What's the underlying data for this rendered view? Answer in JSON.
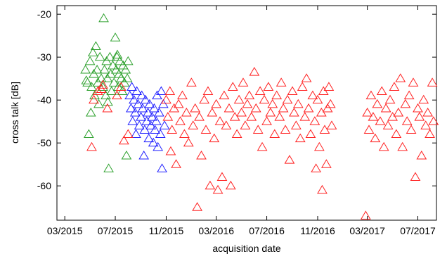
{
  "chart_data": {
    "type": "scatter",
    "title": "",
    "xlabel": "acquisition date",
    "ylabel": "cross talk [dB]",
    "marker": "open-triangle",
    "grid": false,
    "legend": "none",
    "xlim": [
      "2015-02-10",
      "2017-08-15"
    ],
    "ylim": [
      -68,
      -18
    ],
    "x_ticks": [
      "03/2015",
      "07/2015",
      "11/2015",
      "03/2016",
      "07/2016",
      "11/2016",
      "03/2017",
      "07/2017"
    ],
    "y_ticks": [
      -60,
      -50,
      -40,
      -30,
      -20
    ],
    "series": [
      {
        "color": "#2ca02c",
        "points": [
          [
            "2015-04-20",
            -33
          ],
          [
            "2015-04-25",
            -36
          ],
          [
            "2015-04-28",
            -48
          ],
          [
            "2015-05-01",
            -31
          ],
          [
            "2015-05-05",
            -37
          ],
          [
            "2015-05-08",
            -29
          ],
          [
            "2015-05-10",
            -34
          ],
          [
            "2015-05-12",
            -39
          ],
          [
            "2015-05-15",
            -27.5
          ],
          [
            "2015-05-18",
            -33
          ],
          [
            "2015-05-20",
            -36
          ],
          [
            "2015-05-22",
            -41
          ],
          [
            "2015-05-25",
            -30
          ],
          [
            "2015-05-28",
            -35
          ],
          [
            "2015-06-01",
            -37
          ],
          [
            "2015-06-03",
            -21
          ],
          [
            "2015-06-05",
            -33
          ],
          [
            "2015-06-08",
            -39
          ],
          [
            "2015-06-10",
            -31
          ],
          [
            "2015-06-12",
            -35
          ],
          [
            "2015-06-15",
            -56
          ],
          [
            "2015-06-18",
            -30
          ],
          [
            "2015-06-20",
            -34
          ],
          [
            "2015-06-22",
            -38
          ],
          [
            "2015-06-25",
            -32
          ],
          [
            "2015-06-28",
            -36
          ],
          [
            "2015-07-01",
            -25.5
          ],
          [
            "2015-07-03",
            -33
          ],
          [
            "2015-07-05",
            -30
          ],
          [
            "2015-07-08",
            -37
          ],
          [
            "2015-07-10",
            -34
          ],
          [
            "2015-07-12",
            -31
          ],
          [
            "2015-07-15",
            -35
          ],
          [
            "2015-07-18",
            -38
          ],
          [
            "2015-07-20",
            -32
          ],
          [
            "2015-07-23",
            -36
          ],
          [
            "2015-07-26",
            -33
          ],
          [
            "2015-07-28",
            -53
          ],
          [
            "2015-07-30",
            -35
          ],
          [
            "2015-08-01",
            -31
          ],
          [
            "2015-05-03",
            -43
          ],
          [
            "2015-06-13",
            -40.5
          ],
          [
            "2015-04-22",
            -35.5
          ],
          [
            "2015-07-06",
            -29.5
          ]
        ]
      },
      {
        "color": "#1f1fff",
        "points": [
          [
            "2015-08-05",
            -39
          ],
          [
            "2015-08-08",
            -42
          ],
          [
            "2015-08-10",
            -37
          ],
          [
            "2015-08-12",
            -45
          ],
          [
            "2015-08-15",
            -40
          ],
          [
            "2015-08-18",
            -43
          ],
          [
            "2015-08-20",
            -48
          ],
          [
            "2015-08-22",
            -38
          ],
          [
            "2015-08-25",
            -41
          ],
          [
            "2015-08-28",
            -46
          ],
          [
            "2015-09-01",
            -44
          ],
          [
            "2015-09-03",
            -39
          ],
          [
            "2015-09-05",
            -42
          ],
          [
            "2015-09-08",
            -53
          ],
          [
            "2015-09-10",
            -47
          ],
          [
            "2015-09-12",
            -40
          ],
          [
            "2015-09-15",
            -45
          ],
          [
            "2015-09-18",
            -43
          ],
          [
            "2015-09-20",
            -49
          ],
          [
            "2015-09-22",
            -41
          ],
          [
            "2015-09-25",
            -46
          ],
          [
            "2015-09-28",
            -44
          ],
          [
            "2015-10-01",
            -50
          ],
          [
            "2015-10-03",
            -42
          ],
          [
            "2015-10-05",
            -47
          ],
          [
            "2015-10-08",
            -45
          ],
          [
            "2015-10-10",
            -39
          ],
          [
            "2015-10-12",
            -51
          ],
          [
            "2015-10-15",
            -43
          ],
          [
            "2015-10-18",
            -48
          ],
          [
            "2015-10-20",
            -38
          ],
          [
            "2015-10-22",
            -56
          ],
          [
            "2015-10-25",
            -41
          ],
          [
            "2015-10-28",
            -46
          ]
        ]
      },
      {
        "color": "#ff2020",
        "points": [
          [
            "2015-05-05",
            -51
          ],
          [
            "2015-05-10",
            -40
          ],
          [
            "2015-05-20",
            -38
          ],
          [
            "2015-06-01",
            -36.5
          ],
          [
            "2015-06-12",
            -42
          ],
          [
            "2015-07-05",
            -39
          ],
          [
            "2015-07-15",
            -37
          ],
          [
            "2015-07-22",
            -49.5
          ],
          [
            "2015-08-01",
            -48
          ],
          [
            "2015-05-28",
            -37.5
          ],
          [
            "2015-11-01",
            -40
          ],
          [
            "2015-11-05",
            -44
          ],
          [
            "2015-11-10",
            -38
          ],
          [
            "2015-11-12",
            -52
          ],
          [
            "2015-11-15",
            -47
          ],
          [
            "2015-11-20",
            -42
          ],
          [
            "2015-11-25",
            -55
          ],
          [
            "2015-12-01",
            -41
          ],
          [
            "2015-12-05",
            -45
          ],
          [
            "2015-12-10",
            -39
          ],
          [
            "2015-12-15",
            -48
          ],
          [
            "2015-12-20",
            -43
          ],
          [
            "2015-12-25",
            -50
          ],
          [
            "2016-01-01",
            -36
          ],
          [
            "2016-01-05",
            -46
          ],
          [
            "2016-01-10",
            -42
          ],
          [
            "2016-01-15",
            -65
          ],
          [
            "2016-01-20",
            -44
          ],
          [
            "2016-01-25",
            -53
          ],
          [
            "2016-02-01",
            -40
          ],
          [
            "2016-02-05",
            -47
          ],
          [
            "2016-02-10",
            -38
          ],
          [
            "2016-02-15",
            -60
          ],
          [
            "2016-02-20",
            -43
          ],
          [
            "2016-02-25",
            -49
          ],
          [
            "2016-03-01",
            -41
          ],
          [
            "2016-03-05",
            -61
          ],
          [
            "2016-03-10",
            -45
          ],
          [
            "2016-03-15",
            -58
          ],
          [
            "2016-03-20",
            -39
          ],
          [
            "2016-03-25",
            -46
          ],
          [
            "2016-04-01",
            -42
          ],
          [
            "2016-04-05",
            -60
          ],
          [
            "2016-04-10",
            -37
          ],
          [
            "2016-04-15",
            -44
          ],
          [
            "2016-04-20",
            -48
          ],
          [
            "2016-04-25",
            -40
          ],
          [
            "2016-05-01",
            -43
          ],
          [
            "2016-05-05",
            -36
          ],
          [
            "2016-05-10",
            -46
          ],
          [
            "2016-05-15",
            -41
          ],
          [
            "2016-05-20",
            -39
          ],
          [
            "2016-05-25",
            -44
          ],
          [
            "2016-06-01",
            -33.5
          ],
          [
            "2016-06-05",
            -42
          ],
          [
            "2016-06-10",
            -47
          ],
          [
            "2016-06-15",
            -38
          ],
          [
            "2016-06-20",
            -51
          ],
          [
            "2016-06-25",
            -40
          ],
          [
            "2016-07-01",
            -45
          ],
          [
            "2016-07-05",
            -37
          ],
          [
            "2016-07-10",
            -43
          ],
          [
            "2016-07-15",
            -41
          ],
          [
            "2016-07-20",
            -48
          ],
          [
            "2016-07-25",
            -39
          ],
          [
            "2016-08-01",
            -44
          ],
          [
            "2016-08-05",
            -36
          ],
          [
            "2016-08-10",
            -42
          ],
          [
            "2016-08-15",
            -47
          ],
          [
            "2016-08-20",
            -40
          ],
          [
            "2016-08-25",
            -54
          ],
          [
            "2016-09-01",
            -38
          ],
          [
            "2016-09-05",
            -43
          ],
          [
            "2016-09-10",
            -46
          ],
          [
            "2016-09-15",
            -41
          ],
          [
            "2016-09-20",
            -49
          ],
          [
            "2016-09-25",
            -37
          ],
          [
            "2016-10-01",
            -44
          ],
          [
            "2016-10-05",
            -35
          ],
          [
            "2016-10-10",
            -42
          ],
          [
            "2016-10-15",
            -48
          ],
          [
            "2016-10-20",
            -39
          ],
          [
            "2016-10-25",
            -45
          ],
          [
            "2016-10-28",
            -56
          ],
          [
            "2016-11-01",
            -40
          ],
          [
            "2016-11-05",
            -51
          ],
          [
            "2016-11-10",
            -43
          ],
          [
            "2016-11-12",
            -61
          ],
          [
            "2016-11-15",
            -38
          ],
          [
            "2016-11-18",
            -47
          ],
          [
            "2016-11-22",
            -55
          ],
          [
            "2016-11-25",
            -42
          ],
          [
            "2016-11-28",
            -37
          ],
          [
            "2016-12-02",
            -41
          ],
          [
            "2016-12-05",
            -46
          ],
          [
            "2017-02-25",
            -67
          ],
          [
            "2017-03-01",
            -43
          ],
          [
            "2017-03-05",
            -47
          ],
          [
            "2017-03-10",
            -39
          ],
          [
            "2017-03-15",
            -44
          ],
          [
            "2017-03-20",
            -49
          ],
          [
            "2017-03-25",
            -41
          ],
          [
            "2017-04-01",
            -45
          ],
          [
            "2017-04-05",
            -38
          ],
          [
            "2017-04-10",
            -51
          ],
          [
            "2017-04-15",
            -42
          ],
          [
            "2017-04-20",
            -46
          ],
          [
            "2017-04-25",
            -40
          ],
          [
            "2017-05-01",
            -44
          ],
          [
            "2017-05-05",
            -37
          ],
          [
            "2017-05-10",
            -48
          ],
          [
            "2017-05-15",
            -43
          ],
          [
            "2017-05-20",
            -35
          ],
          [
            "2017-05-25",
            -51
          ],
          [
            "2017-06-01",
            -41
          ],
          [
            "2017-06-05",
            -45
          ],
          [
            "2017-06-10",
            -39
          ],
          [
            "2017-06-15",
            -47
          ],
          [
            "2017-06-20",
            -36
          ],
          [
            "2017-06-25",
            -58
          ],
          [
            "2017-07-01",
            -42
          ],
          [
            "2017-07-05",
            -44
          ],
          [
            "2017-07-10",
            -53
          ],
          [
            "2017-07-15",
            -40
          ],
          [
            "2017-07-20",
            -46
          ],
          [
            "2017-07-25",
            -43
          ],
          [
            "2017-07-30",
            -48
          ],
          [
            "2017-08-05",
            -36
          ],
          [
            "2017-08-08",
            -45
          ]
        ]
      }
    ]
  }
}
